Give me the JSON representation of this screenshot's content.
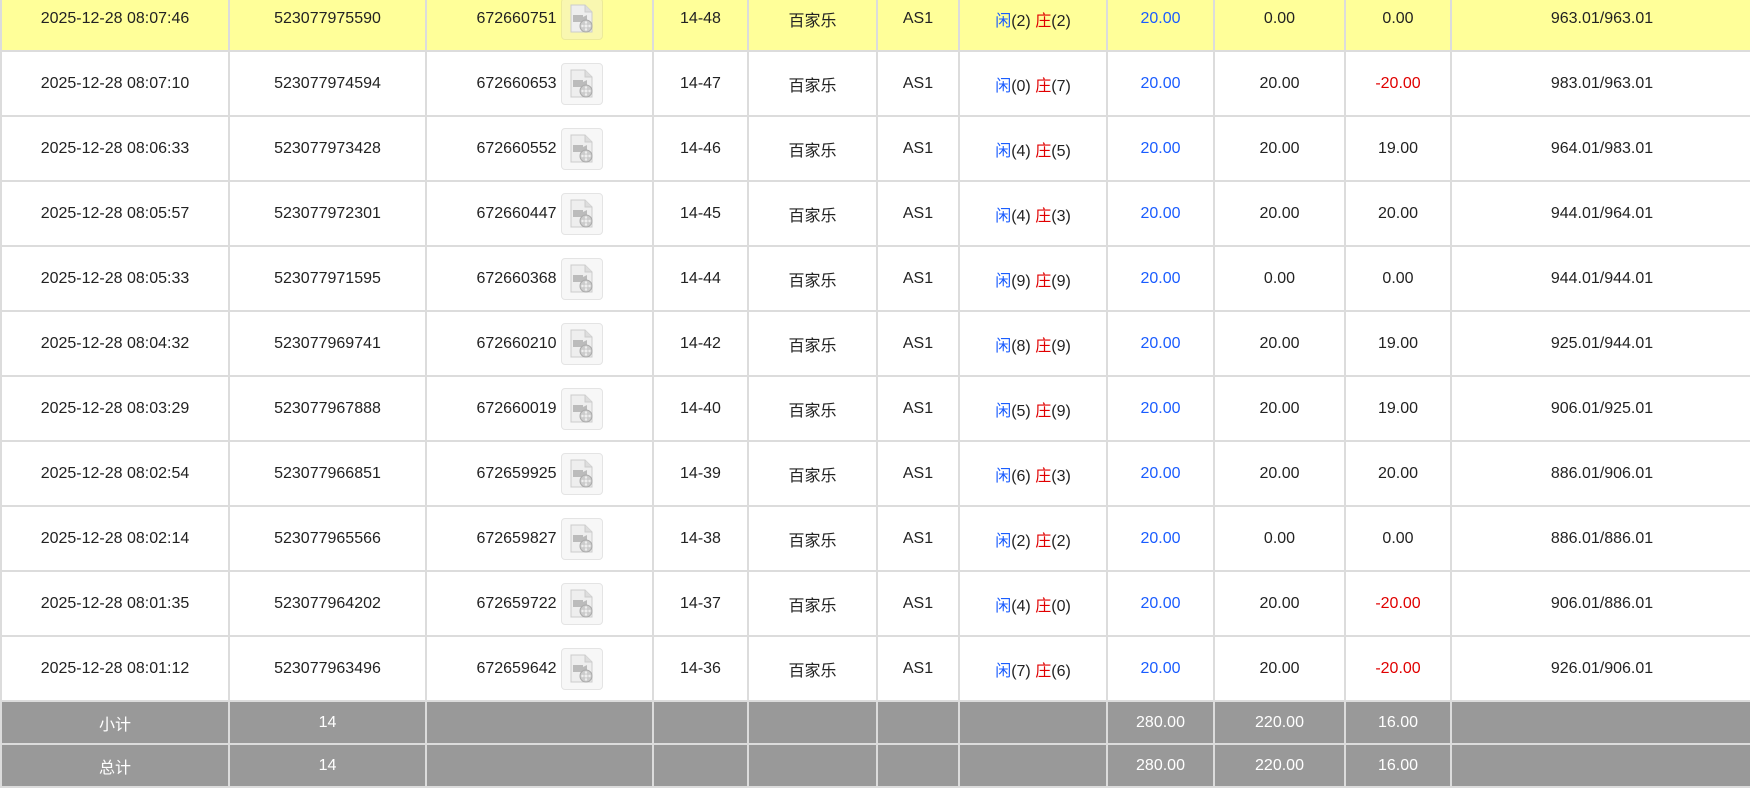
{
  "colors": {
    "highlight": "#ffff99",
    "bet": "#1a5cff",
    "negative": "#e00000",
    "summary_bg": "#999999"
  },
  "rows": [
    {
      "time": "2025-12-28 08:07:46",
      "bet_id": "523077975590",
      "round_id": "672660751",
      "shoe": "14-48",
      "game": "百家乐",
      "table": "AS1",
      "player": "闲",
      "player_pts": "(2)",
      "banker": "庄",
      "banker_pts": "(2)",
      "bet": "20.00",
      "valid": "0.00",
      "win": "0.00",
      "balance": "963.01/963.01",
      "highlight": true
    },
    {
      "time": "2025-12-28 08:07:10",
      "bet_id": "523077974594",
      "round_id": "672660653",
      "shoe": "14-47",
      "game": "百家乐",
      "table": "AS1",
      "player": "闲",
      "player_pts": "(0)",
      "banker": "庄",
      "banker_pts": "(7)",
      "bet": "20.00",
      "valid": "20.00",
      "win": "-20.00",
      "balance": "983.01/963.01"
    },
    {
      "time": "2025-12-28 08:06:33",
      "bet_id": "523077973428",
      "round_id": "672660552",
      "shoe": "14-46",
      "game": "百家乐",
      "table": "AS1",
      "player": "闲",
      "player_pts": "(4)",
      "banker": "庄",
      "banker_pts": "(5)",
      "bet": "20.00",
      "valid": "20.00",
      "win": "19.00",
      "balance": "964.01/983.01"
    },
    {
      "time": "2025-12-28 08:05:57",
      "bet_id": "523077972301",
      "round_id": "672660447",
      "shoe": "14-45",
      "game": "百家乐",
      "table": "AS1",
      "player": "闲",
      "player_pts": "(4)",
      "banker": "庄",
      "banker_pts": "(3)",
      "bet": "20.00",
      "valid": "20.00",
      "win": "20.00",
      "balance": "944.01/964.01"
    },
    {
      "time": "2025-12-28 08:05:33",
      "bet_id": "523077971595",
      "round_id": "672660368",
      "shoe": "14-44",
      "game": "百家乐",
      "table": "AS1",
      "player": "闲",
      "player_pts": "(9)",
      "banker": "庄",
      "banker_pts": "(9)",
      "bet": "20.00",
      "valid": "0.00",
      "win": "0.00",
      "balance": "944.01/944.01"
    },
    {
      "time": "2025-12-28 08:04:32",
      "bet_id": "523077969741",
      "round_id": "672660210",
      "shoe": "14-42",
      "game": "百家乐",
      "table": "AS1",
      "player": "闲",
      "player_pts": "(8)",
      "banker": "庄",
      "banker_pts": "(9)",
      "bet": "20.00",
      "valid": "20.00",
      "win": "19.00",
      "balance": "925.01/944.01"
    },
    {
      "time": "2025-12-28 08:03:29",
      "bet_id": "523077967888",
      "round_id": "672660019",
      "shoe": "14-40",
      "game": "百家乐",
      "table": "AS1",
      "player": "闲",
      "player_pts": "(5)",
      "banker": "庄",
      "banker_pts": "(9)",
      "bet": "20.00",
      "valid": "20.00",
      "win": "19.00",
      "balance": "906.01/925.01"
    },
    {
      "time": "2025-12-28 08:02:54",
      "bet_id": "523077966851",
      "round_id": "672659925",
      "shoe": "14-39",
      "game": "百家乐",
      "table": "AS1",
      "player": "闲",
      "player_pts": "(6)",
      "banker": "庄",
      "banker_pts": "(3)",
      "bet": "20.00",
      "valid": "20.00",
      "win": "20.00",
      "balance": "886.01/906.01"
    },
    {
      "time": "2025-12-28 08:02:14",
      "bet_id": "523077965566",
      "round_id": "672659827",
      "shoe": "14-38",
      "game": "百家乐",
      "table": "AS1",
      "player": "闲",
      "player_pts": "(2)",
      "banker": "庄",
      "banker_pts": "(2)",
      "bet": "20.00",
      "valid": "0.00",
      "win": "0.00",
      "balance": "886.01/886.01"
    },
    {
      "time": "2025-12-28 08:01:35",
      "bet_id": "523077964202",
      "round_id": "672659722",
      "shoe": "14-37",
      "game": "百家乐",
      "table": "AS1",
      "player": "闲",
      "player_pts": "(4)",
      "banker": "庄",
      "banker_pts": "(0)",
      "bet": "20.00",
      "valid": "20.00",
      "win": "-20.00",
      "balance": "906.01/886.01"
    },
    {
      "time": "2025-12-28 08:01:12",
      "bet_id": "523077963496",
      "round_id": "672659642",
      "shoe": "14-36",
      "game": "百家乐",
      "table": "AS1",
      "player": "闲",
      "player_pts": "(7)",
      "banker": "庄",
      "banker_pts": "(6)",
      "bet": "20.00",
      "valid": "20.00",
      "win": "-20.00",
      "balance": "926.01/906.01"
    }
  ],
  "summary": [
    {
      "label": "小计",
      "count": "14",
      "bet": "280.00",
      "valid": "220.00",
      "win": "16.00"
    },
    {
      "label": "总计",
      "count": "14",
      "bet": "280.00",
      "valid": "220.00",
      "win": "16.00"
    }
  ]
}
